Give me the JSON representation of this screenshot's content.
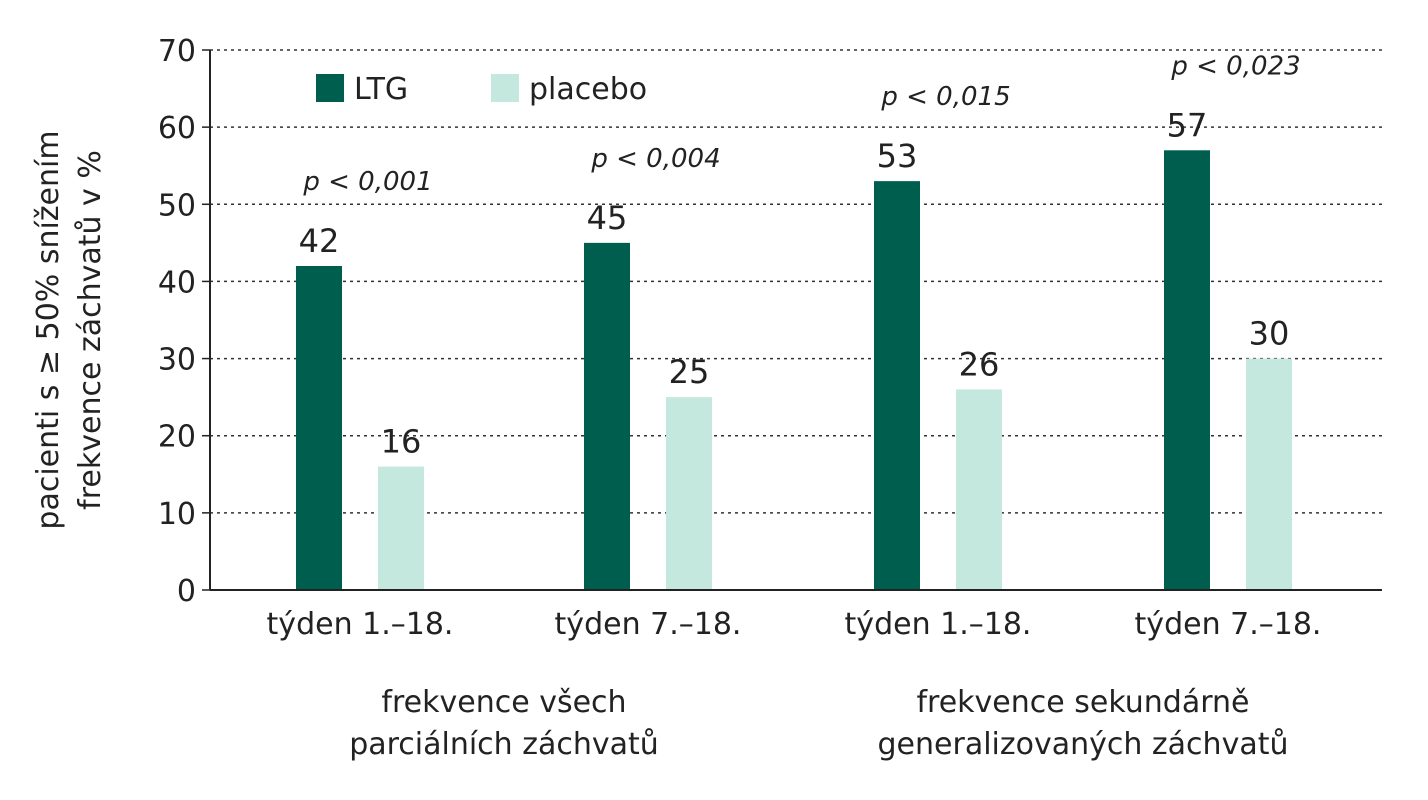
{
  "chart_data": {
    "type": "bar",
    "ylabel_lines": [
      "pacienti s ≥ 50% snížením",
      "frekvence záchvatů v %"
    ],
    "ylim": [
      0,
      70
    ],
    "yticks": [
      "0",
      "10",
      "20",
      "30",
      "40",
      "50",
      "60",
      "70"
    ],
    "grid": true,
    "legend_placement": "top-left",
    "categories": [
      "týden 1.–18.",
      "týden 7.–18.",
      "týden 1.–18.",
      "týden 7.–18."
    ],
    "series": [
      {
        "name": "LTG",
        "color": "#005e4f",
        "values": [
          42,
          45,
          53,
          57
        ]
      },
      {
        "name": "placebo",
        "color": "#c5e8de",
        "values": [
          16,
          25,
          26,
          30
        ]
      }
    ],
    "p_values": [
      "p < 0,001",
      "p < 0,004",
      "p < 0,015",
      "p < 0,023"
    ],
    "groups": [
      {
        "lines": [
          "frekvence všech",
          "parciálních záchvatů"
        ],
        "categories": [
          0,
          1
        ]
      },
      {
        "lines": [
          "frekvence sekundárně",
          "generalizovaných záchvatů"
        ],
        "categories": [
          2,
          3
        ]
      }
    ]
  }
}
